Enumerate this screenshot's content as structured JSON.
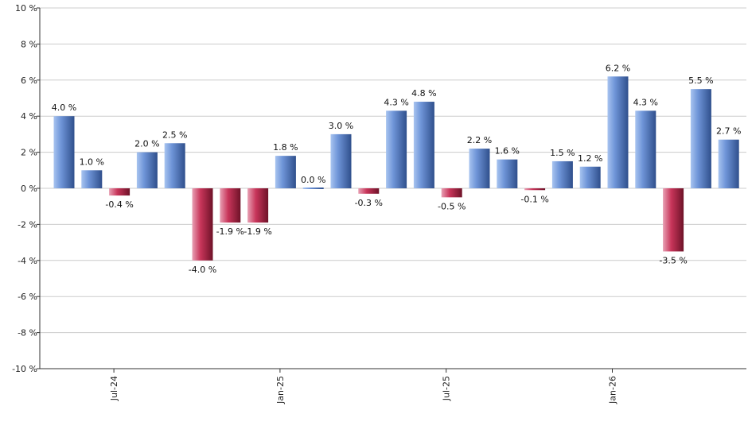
{
  "chart_data": {
    "type": "bar",
    "y_unit_suffix": " %",
    "ylim": [
      -10,
      10
    ],
    "y_ticks": [
      10,
      8,
      6,
      4,
      2,
      0,
      -2,
      -4,
      -6,
      -8,
      -10
    ],
    "y_tick_labels": [
      "10 %",
      "8 %",
      "6 %",
      "4 %",
      "2 %",
      "0 %",
      "-2 %",
      "-4 %",
      "-6 %",
      "-8 %",
      "-10 %"
    ],
    "grid": true,
    "x_ticks": [
      {
        "label": "Jul-24",
        "index": 2
      },
      {
        "label": "Jan-25",
        "index": 8
      },
      {
        "label": "Jul-25",
        "index": 14
      },
      {
        "label": "Jan-26",
        "index": 20
      }
    ],
    "values": [
      4.0,
      1.0,
      -0.4,
      2.0,
      2.5,
      -4.0,
      -1.9,
      -1.9,
      1.8,
      0.0,
      3.0,
      -0.3,
      4.3,
      4.8,
      -0.5,
      2.2,
      1.6,
      -0.1,
      1.5,
      1.2,
      6.2,
      4.3,
      -3.5,
      5.5,
      2.7
    ],
    "labels": [
      "4.0 %",
      "1.0 %",
      "-0.4 %",
      "2.0 %",
      "2.5 %",
      "-4.0 %",
      "-1.9 %",
      "-1.9 %",
      "1.8 %",
      "0.0 %",
      "3.0 %",
      "-0.3 %",
      "4.3 %",
      "4.8 %",
      "-0.5 %",
      "2.2 %",
      "1.6 %",
      "-0.1 %",
      "1.5 %",
      "1.2 %",
      "6.2 %",
      "4.3 %",
      "-3.5 %",
      "5.5 %",
      "2.7 %"
    ],
    "colors": {
      "positive_light": "#a8c4f0",
      "positive_mid": "#6f95d8",
      "positive_dark": "#2f4f8c",
      "negative_light": "#e8a0b4",
      "negative_mid": "#c8355a",
      "negative_dark": "#6e1228",
      "grid": "#cccccc",
      "axis": "#333333"
    }
  }
}
